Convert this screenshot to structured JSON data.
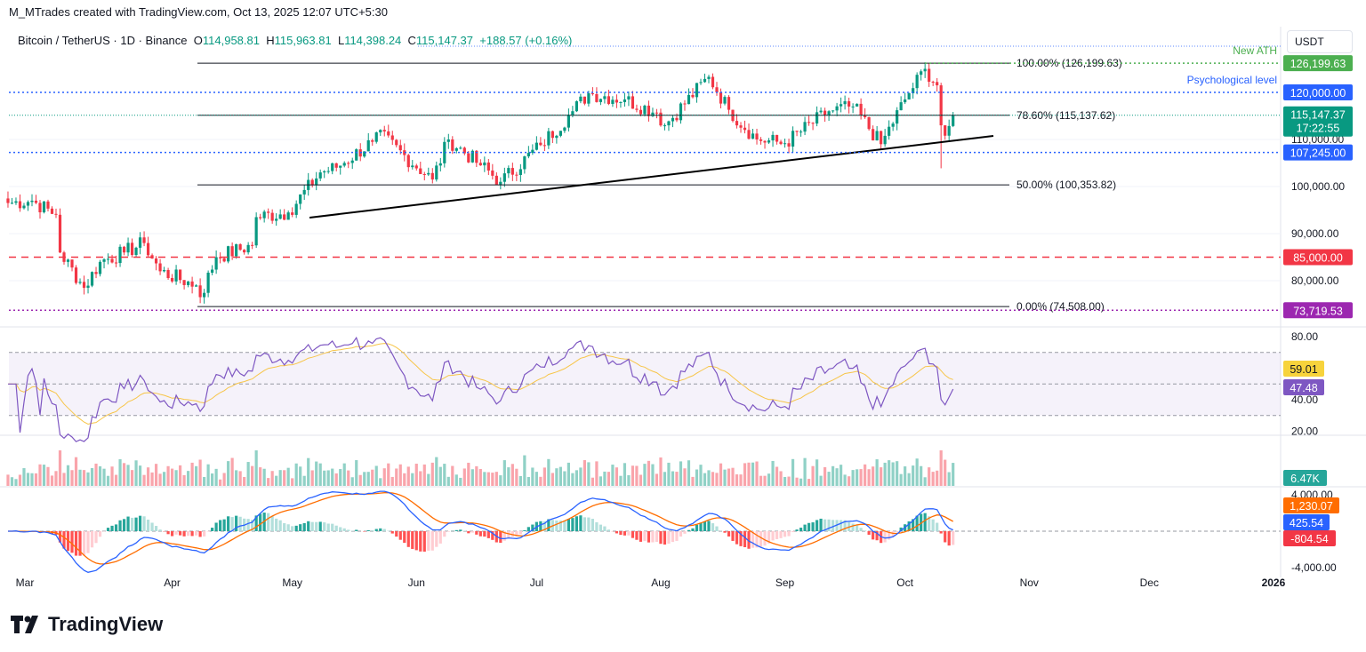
{
  "credit": "M_MTrades created with TradingView.com, Oct 13, 2025 12:07 UTC+5:30",
  "legend": {
    "symbol": "Bitcoin / TetherUS · 1D · Binance",
    "o_label": "O",
    "o": "114,958.81",
    "h_label": "H",
    "h": "115,963.81",
    "l_label": "L",
    "l": "114,398.24",
    "c_label": "C",
    "c": "115,147.37",
    "change": "+188.57 (+0.16%)"
  },
  "currency": "USDT",
  "brand": "TradingView",
  "chart_data": {
    "type": "candlestick",
    "title": "Bitcoin / TetherUS · 1D · Binance",
    "anchor_closes": [
      [
        "Feb 19",
        96500
      ],
      [
        "Feb 25",
        97000
      ],
      [
        "Mar 3",
        94000
      ],
      [
        "Mar 4",
        86000
      ],
      [
        "Mar 10",
        78500
      ],
      [
        "Mar 14",
        84000
      ],
      [
        "Mar 20",
        86000
      ],
      [
        "Mar 25",
        88000
      ],
      [
        "Mar 29",
        82000
      ],
      [
        "Apr 7",
        79000
      ],
      [
        "Apr 8",
        76500
      ],
      [
        "Apr 12",
        85000
      ],
      [
        "Apr 21",
        87500
      ],
      [
        "Apr 22",
        93500
      ],
      [
        "Apr 30",
        94500
      ],
      [
        "May 8",
        103000
      ],
      [
        "May 12",
        104000
      ],
      [
        "May 21",
        109500
      ],
      [
        "May 22",
        111500
      ],
      [
        "Jun 5",
        101500
      ],
      [
        "Jun 9",
        110000
      ],
      [
        "Jun 17",
        104500
      ],
      [
        "Jun 22",
        101000
      ],
      [
        "Jul 2",
        108800
      ],
      [
        "Jul 10",
        116000
      ],
      [
        "Jul 14",
        119800
      ],
      [
        "Jul 23",
        118500
      ],
      [
        "Jul 31",
        115700
      ],
      [
        "Aug 2",
        113000
      ],
      [
        "Aug 13",
        123300
      ],
      [
        "Aug 18",
        116300
      ],
      [
        "Aug 25",
        110000
      ],
      [
        "Sep 1",
        109200
      ],
      [
        "Sep 12",
        116000
      ],
      [
        "Sep 18",
        117000
      ],
      [
        "Sep 25",
        109000
      ],
      [
        "Oct 1",
        118500
      ],
      [
        "Oct 6",
        125000
      ],
      [
        "Oct 9",
        121500
      ],
      [
        "Oct 10",
        113000
      ],
      [
        "Oct 11",
        110800
      ],
      [
        "Oct 13",
        115147.37
      ]
    ],
    "price_ticks": [
      "100,000.00",
      "90,000.00",
      "80,000.00",
      "110,000.00"
    ],
    "x_ticks": [
      "Mar",
      "Apr",
      "May",
      "Jun",
      "Jul",
      "Aug",
      "Sep",
      "Oct",
      "Nov",
      "Dec",
      "2026"
    ],
    "fib_levels": [
      {
        "label": "100.00% (126,199.63)",
        "value": 126199.63
      },
      {
        "label": "78.60% (115,137.62)",
        "value": 115137.62
      },
      {
        "label": "50.00% (100,353.82)",
        "value": 100353.82
      },
      {
        "label": "0.00% (74,508.00)",
        "value": 74508
      }
    ],
    "levels": [
      {
        "label": "126,199.63",
        "value": 126199.63,
        "color": "#4caf50",
        "note": "New ATH"
      },
      {
        "label": "120,000.00",
        "value": 120000,
        "color": "#2962ff",
        "note": "Psychological level"
      },
      {
        "label": "107,245.00",
        "value": 107245,
        "color": "#2962ff"
      },
      {
        "label": "85,000.00",
        "value": 85000,
        "color": "#f23645"
      },
      {
        "label": "73,719.53",
        "value": 73719.53,
        "color": "#9c27b0"
      }
    ],
    "last_price": {
      "label": "115,147.37",
      "countdown": "17:22:55",
      "color": "#089981"
    },
    "rsi": {
      "ticks": [
        "80.00",
        "40.00",
        "20.00"
      ],
      "value": "47.48",
      "ma": "59.01",
      "upper": 70,
      "lower": 30
    },
    "volume": {
      "value": "6.47K"
    },
    "macd": {
      "ticks": [
        "4,000.00",
        "-4,000.00"
      ],
      "signal": "1,230.07",
      "macd": "425.54",
      "hist": "-804.54"
    },
    "colors": {
      "up": "#089981",
      "down": "#f23645"
    }
  }
}
